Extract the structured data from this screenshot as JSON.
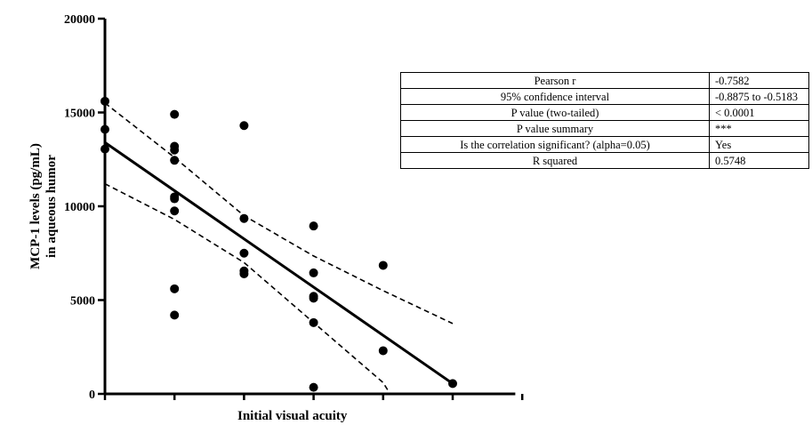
{
  "chart_data": {
    "type": "scatter",
    "xlabel": "Initial visual acuity",
    "ylabel_lines": [
      "MCP-1 levels (pg/mL)",
      "in aqueous humor"
    ],
    "ylim": [
      0,
      20000
    ],
    "y_ticks": [
      0,
      5000,
      10000,
      15000,
      20000
    ],
    "x_tick_count": 5,
    "points": [
      {
        "x": 0,
        "y": 15600
      },
      {
        "x": 0,
        "y": 14100
      },
      {
        "x": 0,
        "y": 13050
      },
      {
        "x": 1,
        "y": 14900
      },
      {
        "x": 1,
        "y": 13200
      },
      {
        "x": 1,
        "y": 13000
      },
      {
        "x": 1,
        "y": 12450
      },
      {
        "x": 1,
        "y": 10500
      },
      {
        "x": 1,
        "y": 10400
      },
      {
        "x": 1,
        "y": 9750
      },
      {
        "x": 1,
        "y": 5600
      },
      {
        "x": 1,
        "y": 4200
      },
      {
        "x": 2,
        "y": 14300
      },
      {
        "x": 2,
        "y": 9350
      },
      {
        "x": 2,
        "y": 7500
      },
      {
        "x": 2,
        "y": 6550
      },
      {
        "x": 2,
        "y": 6400
      },
      {
        "x": 3,
        "y": 8950
      },
      {
        "x": 3,
        "y": 6450
      },
      {
        "x": 3,
        "y": 5200
      },
      {
        "x": 3,
        "y": 5100
      },
      {
        "x": 3,
        "y": 3800
      },
      {
        "x": 3,
        "y": 350
      },
      {
        "x": 4,
        "y": 6850
      },
      {
        "x": 4,
        "y": 2300
      },
      {
        "x": 5,
        "y": 550
      }
    ],
    "regression_line": {
      "x": [
        0,
        5
      ],
      "y": [
        13400,
        550
      ]
    },
    "ci_upper": {
      "x": [
        0,
        1,
        2,
        3,
        4,
        5
      ],
      "y": [
        15500,
        12600,
        9500,
        7350,
        5500,
        3750
      ]
    },
    "ci_lower": {
      "x": [
        0,
        1,
        2,
        3,
        4,
        4.1
      ],
      "y": [
        11200,
        9300,
        7000,
        3800,
        600,
        0
      ]
    }
  },
  "stats_table": {
    "rows": [
      {
        "label": "Pearson r",
        "value": "-0.7582"
      },
      {
        "label": "95% confidence interval",
        "value": "-0.8875 to -0.5183"
      },
      {
        "label": "P value (two-tailed)",
        "value": "< 0.0001"
      },
      {
        "label": "P value summary",
        "value": "***"
      },
      {
        "label": "Is the correlation significant? (alpha=0.05)",
        "value": "Yes"
      },
      {
        "label": "R squared",
        "value": "0.5748"
      }
    ]
  }
}
